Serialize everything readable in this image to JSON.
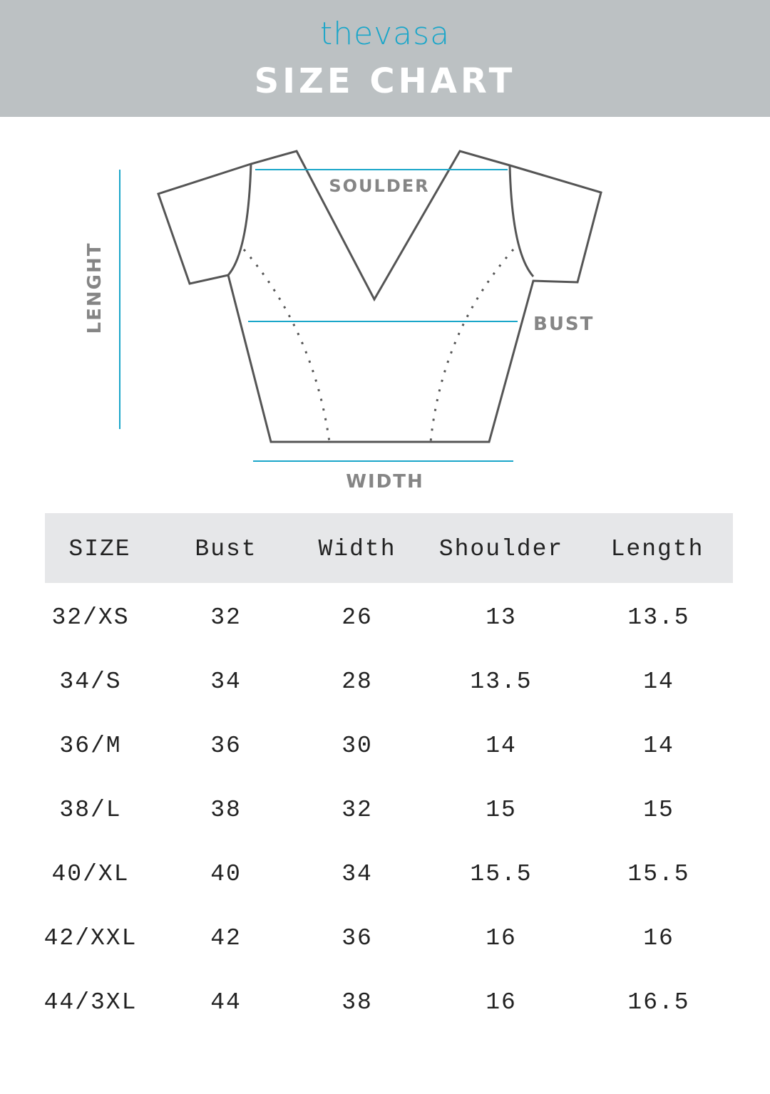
{
  "header": {
    "logo": "thevasa",
    "title": "SIZE CHART"
  },
  "diagram": {
    "labels": {
      "shoulder": "SOULDER",
      "bust": "BUST",
      "length": "LENGHT",
      "width": "WIDTH"
    },
    "accent_color": "#1aa6c9"
  },
  "table": {
    "columns": [
      "SIZE",
      "Bust",
      "Width",
      "Shoulder",
      "Length"
    ],
    "rows": [
      [
        "32/XS",
        "32",
        "26",
        "13",
        "13.5"
      ],
      [
        "34/S",
        "34",
        "28",
        "13.5",
        "14"
      ],
      [
        "36/M",
        "36",
        "30",
        "14",
        "14"
      ],
      [
        "38/L",
        "38",
        "32",
        "15",
        "15"
      ],
      [
        "40/XL",
        "40",
        "34",
        "15.5",
        "15.5"
      ],
      [
        "42/XXL",
        "42",
        "36",
        "16",
        "16"
      ],
      [
        "44/3XL",
        "44",
        "38",
        "16",
        "16.5"
      ]
    ]
  }
}
